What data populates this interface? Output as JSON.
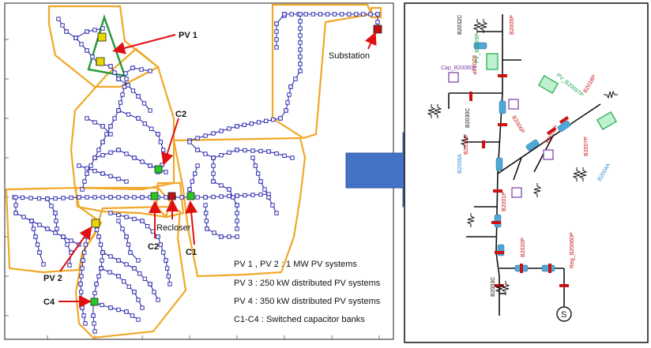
{
  "left_diagram": {
    "labels": {
      "pv1": "PV 1",
      "pv2": "PV 2",
      "substation": "Substation",
      "c1": "C1",
      "c2_top": "C2",
      "c2_bottom": "C2",
      "c4": "C4",
      "recloser": "Recloser"
    },
    "legend": [
      "PV 1 , PV 2 : 1 MW PV systems",
      "PV 3 : 250 kW distributed PV systems",
      "PV 4 : 350 kW distributed PV systems",
      "C1-C4 : Switched capacitor banks"
    ]
  },
  "arrow": {
    "color": "#4472c4"
  },
  "right_diagram": {
    "source_symbol": "S",
    "device_labels": [
      "B2005P",
      "B2032C",
      "B2019P",
      "Cap_B20060P",
      "PV_B2009P",
      "B2006P",
      "PV_B20097P",
      "B2018P",
      "B2030C",
      "B2008P",
      "B2007P",
      "B2001P",
      "Reg_B20060P",
      "B2020P",
      "B2003C",
      "B2006A",
      "B2021B",
      "B2004A"
    ]
  },
  "colors": {
    "feeder": "#1f1fa8",
    "zone": "#f0a828",
    "pv_zone": "#2a9a3a",
    "callout": "#e01010",
    "pv_square": "#e8d800",
    "cap_square": "#22cc22",
    "substation": "#c01010",
    "breaker": "#cc1111",
    "line_segment": "#4fa8d8",
    "pv_symbol": "#1aa84a",
    "cap_symbol": "#7a3aa8"
  }
}
